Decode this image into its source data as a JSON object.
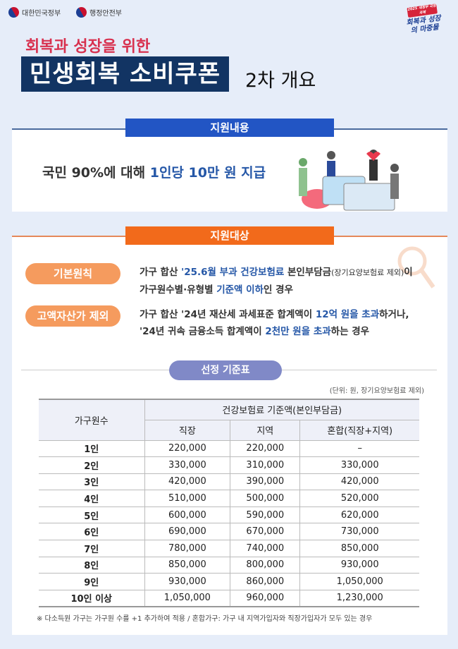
{
  "header": {
    "logos": [
      "대한민국정부",
      "행정안전부"
    ],
    "badge": {
      "top": "2025 새정부 국정과제",
      "text": "회복과 성장의 마중물"
    },
    "subtitle": "회복과 성장을 위한",
    "title_box": "민생회복 소비쿠폰",
    "title_rest": "2차 개요"
  },
  "support_content": {
    "heading": "지원내용",
    "message_plain": "국민 90%에 대해 ",
    "message_highlight": "1인당 10만 원 지급"
  },
  "support_target": {
    "heading": "지원대상",
    "criteria": [
      {
        "label": "기본원칙",
        "line1": [
          {
            "t": "가구 합산 ",
            "hl": false
          },
          {
            "t": "'25.6월 부과 건강보험료",
            "hl": true
          },
          {
            "t": " 본인부담금",
            "hl": false
          },
          {
            "t": "(장기요양보험료 제외)",
            "hl": false,
            "small": true
          },
          {
            "t": "이",
            "hl": false
          }
        ],
        "line2": [
          {
            "t": "가구원수별·유형별 ",
            "hl": false
          },
          {
            "t": "기준액 이하",
            "hl": true
          },
          {
            "t": "인 경우",
            "hl": false
          }
        ]
      },
      {
        "label": "고액자산가 제외",
        "line1": [
          {
            "t": "가구 합산 '24년 재산세 과세표준 합계액이 ",
            "hl": false
          },
          {
            "t": "12억 원을 초과",
            "hl": true
          },
          {
            "t": "하거나,",
            "hl": false
          }
        ],
        "line2": [
          {
            "t": "'24년 귀속 금융소득 합계액이 ",
            "hl": false
          },
          {
            "t": "2천만 원을 초과",
            "hl": true
          },
          {
            "t": "하는 경우",
            "hl": false
          }
        ]
      }
    ]
  },
  "table": {
    "title": "선정 기준표",
    "unit": "(단위: 원, 장기요양보험료 제외)",
    "row_header": "가구원수",
    "group_header": "건강보험료 기준액(본인부담금)",
    "columns": [
      "직장",
      "지역",
      "혼합(직장+지역)"
    ],
    "rows": [
      [
        "1인",
        "220,000",
        "220,000",
        "–"
      ],
      [
        "2인",
        "330,000",
        "310,000",
        "330,000"
      ],
      [
        "3인",
        "420,000",
        "390,000",
        "420,000"
      ],
      [
        "4인",
        "510,000",
        "500,000",
        "520,000"
      ],
      [
        "5인",
        "600,000",
        "590,000",
        "620,000"
      ],
      [
        "6인",
        "690,000",
        "670,000",
        "730,000"
      ],
      [
        "7인",
        "780,000",
        "740,000",
        "850,000"
      ],
      [
        "8인",
        "850,000",
        "800,000",
        "930,000"
      ],
      [
        "9인",
        "930,000",
        "860,000",
        "1,050,000"
      ],
      [
        "10인 이상",
        "1,050,000",
        "960,000",
        "1,230,000"
      ]
    ],
    "note": "※ 다소득원 가구는 가구원 수를 +1 추가하여 적용 / 혼합가구: 가구 내 지역가입자와 직장가입자가 모두 있는 경우"
  },
  "colors": {
    "navy": "#123463",
    "blue_head": "#2255c4",
    "orange_head": "#f26a1b",
    "pill_orange": "#f59b5e",
    "pill_purple": "#8089c7",
    "highlight": "#2557a7",
    "subtitle_red": "#d8314f"
  }
}
